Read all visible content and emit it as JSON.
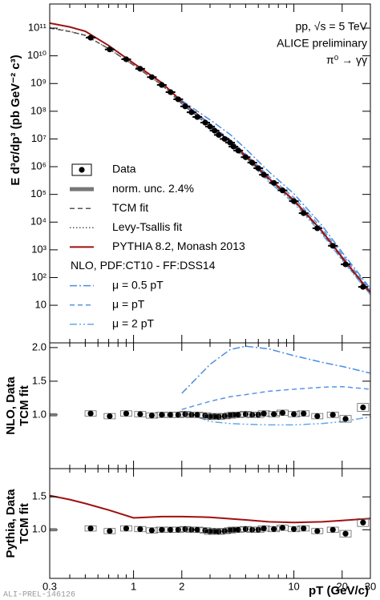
{
  "x_axis": {
    "label": "pT (GeV/c)",
    "xlim": [
      0.3,
      30
    ],
    "xticks": [
      0.3,
      1,
      2,
      10,
      20,
      30
    ],
    "xminor": [
      0.4,
      0.5,
      0.6,
      0.7,
      0.8,
      0.9,
      3,
      4,
      5,
      6,
      7,
      8,
      9
    ],
    "log": true
  },
  "watermark": "ALI-PREL-146126",
  "chart_data": [
    {
      "type": "line",
      "ylabel": "E d³σ/dp³ (pb GeV⁻² c³)",
      "log_y": true,
      "annotations": [
        "pp, √s = 5 TeV",
        "ALICE preliminary",
        "π⁰ → γγ"
      ],
      "ylim": [
        0.44,
        740000000000.0
      ],
      "yticks": [
        10,
        {
          "value": 100,
          "label": "10²"
        },
        {
          "value": 1000,
          "label": "10³"
        },
        {
          "value": 10000,
          "label": "10⁴"
        },
        {
          "value": 100000,
          "label": "10⁵"
        },
        {
          "value": 1000000,
          "label": "10⁶"
        },
        {
          "value": 10000000,
          "label": "10⁷"
        },
        {
          "value": 100000000,
          "label": "10⁸"
        },
        {
          "value": 1000000000,
          "label": "10⁹"
        },
        {
          "value": 10000000000,
          "label": "10¹⁰"
        },
        {
          "value": 100000000000,
          "label": "10¹¹"
        }
      ],
      "norm_unc": {
        "name": "norm. unc. 2.4%",
        "value": 2.4,
        "color": "#777777"
      },
      "legend_header": "NLO, PDF:CT10 - FF:DSS14",
      "series": [
        {
          "name": "Data",
          "color": "#000000",
          "style": "markers",
          "x": [
            0.54,
            0.71,
            0.9,
            1.1,
            1.3,
            1.5,
            1.7,
            1.9,
            2.1,
            2.3,
            2.5,
            2.8,
            3.0,
            3.2,
            3.4,
            3.7,
            4.0,
            4.2,
            4.5,
            5.0,
            5.5,
            6,
            6.5,
            7.5,
            8.5,
            10,
            11.5,
            14,
            17.5,
            21,
            27
          ],
          "values": [
            45000000000.0,
            17000000000.0,
            7500000000.0,
            3400000000.0,
            1700000000.0,
            890000000.0,
            490000000.0,
            270000000.0,
            150000000.0,
            92000000.0,
            62000000.0,
            39000000.0,
            28000000.0,
            20000000.0,
            14000000.0,
            10000000.0,
            7400000.0,
            5300000.0,
            3800000.0,
            2200000.0,
            1400000.0,
            880000.0,
            510000.0,
            260000.0,
            140000.0,
            57000.0,
            21000.0,
            6000.0,
            1400.0,
            300,
            46
          ]
        },
        {
          "name": "TCM fit",
          "color": "#555555",
          "style": "dashed",
          "x": [
            0.3,
            0.4,
            0.5,
            0.7,
            1,
            1.5,
            2,
            3,
            5,
            7,
            10,
            15,
            20,
            30
          ],
          "values": [
            100000000000.0,
            75000000000.0,
            55000000000.0,
            18000000000.0,
            4600000000.0,
            890000000.0,
            185000000.0,
            28000000.0,
            2200000.0,
            330000.0,
            56000.0,
            4200.0,
            470,
            25
          ]
        },
        {
          "name": "Levy-Tsallis fit",
          "color": "#555555",
          "style": "dotted",
          "x": [
            0.3,
            0.4,
            0.5,
            0.7,
            1,
            1.5,
            2,
            3,
            5,
            7,
            10,
            15,
            20,
            30
          ],
          "values": [
            105000000000.0,
            76000000000.0,
            55000000000.0,
            18000000000.0,
            4600000000.0,
            890000000.0,
            185000000.0,
            28000000.0,
            2200000.0,
            330000.0,
            57000.0,
            4300.0,
            480,
            26
          ]
        },
        {
          "name": "PYTHIA 8.2, Monash 2013",
          "color": "#a01010",
          "style": "solid",
          "x": [
            0.3,
            0.4,
            0.5,
            0.7,
            1,
            1.5,
            2,
            3,
            5,
            7,
            10,
            15,
            20,
            30
          ],
          "values": [
            152000000000.0,
            110000000000.0,
            77000000000.0,
            23400000000.0,
            5400000000.0,
            1070000000.0,
            222000000.0,
            33300000.0,
            2530000.0,
            370000.0,
            62000.0,
            4700.0,
            536,
            29
          ]
        },
        {
          "name": "μ = 0.5 pT",
          "color": "#4a8ee0",
          "style": "dash-dot",
          "x": [
            2,
            3,
            4,
            5,
            7,
            10,
            15,
            20,
            30
          ],
          "values": [
            244000000.0,
            49000000.0,
            14600000.0,
            4440000.0,
            650000.0,
            105000.0,
            7500.0,
            810,
            40
          ]
        },
        {
          "name": "μ = pT",
          "color": "#5b93e6",
          "style": "dashed",
          "x": [
            2,
            3,
            4,
            5,
            7,
            10,
            15,
            20,
            30
          ],
          "values": [
            200000000.0,
            33600000.0,
            9400000.0,
            2860000.0,
            446000.0,
            77000.0,
            5900.0,
            670,
            35
          ]
        },
        {
          "name": "μ = 2 pT",
          "color": "#62a8ea",
          "style": "dash-dot-dot",
          "x": [
            2,
            3,
            4,
            5,
            7,
            10,
            15,
            20,
            30
          ],
          "values": [
            194000000.0,
            25200000.0,
            6400000.0,
            1890000.0,
            280000.0,
            48000.0,
            3650.0,
            420,
            24
          ]
        }
      ]
    },
    {
      "type": "line",
      "ylabel": [
        "NLO, Data",
        "TCM fit"
      ],
      "log_y": false,
      "ylim": [
        0.2,
        2.07
      ],
      "yticks": [
        {
          "value": 1,
          "label": "1.0"
        },
        {
          "value": 1.5,
          "label": "1.5"
        },
        {
          "value": 2,
          "label": "2.0"
        }
      ],
      "series": [
        {
          "color": "#4a8ee0",
          "style": "dash-dot",
          "x": [
            2,
            3,
            4,
            5,
            7,
            10,
            15,
            20,
            30
          ],
          "values": [
            1.32,
            1.75,
            1.97,
            2.02,
            1.98,
            1.88,
            1.78,
            1.72,
            1.62
          ]
        },
        {
          "color": "#5b93e6",
          "style": "dashed",
          "x": [
            2,
            3,
            4,
            5,
            7,
            10,
            15,
            20,
            30
          ],
          "values": [
            1.08,
            1.2,
            1.27,
            1.3,
            1.35,
            1.38,
            1.41,
            1.42,
            1.38
          ]
        },
        {
          "color": "#62a8ea",
          "style": "dash-dot-dot",
          "x": [
            2,
            3,
            4,
            5,
            7,
            10,
            15,
            20,
            30
          ],
          "values": [
            1.05,
            0.9,
            0.87,
            0.86,
            0.85,
            0.85,
            0.87,
            0.9,
            0.97
          ]
        },
        {
          "color": "#000000",
          "style": "markers",
          "x": [
            0.54,
            0.71,
            0.9,
            1.1,
            1.3,
            1.5,
            1.7,
            1.9,
            2.1,
            2.3,
            2.5,
            2.8,
            3.0,
            3.2,
            3.4,
            3.7,
            4.0,
            4.2,
            4.5,
            5.0,
            5.5,
            6,
            6.5,
            7.5,
            8.5,
            10,
            11.5,
            14,
            17.5,
            21,
            27
          ],
          "values": [
            1.02,
            0.98,
            1.02,
            1.01,
            0.99,
            1.0,
            1.0,
            1.0,
            1.01,
            1.0,
            1.0,
            0.99,
            0.97,
            0.98,
            0.97,
            0.98,
            0.99,
            1.0,
            1.0,
            1.01,
            1.0,
            1.0,
            1.02,
            1.01,
            1.03,
            1.01,
            1.02,
            0.98,
            1.0,
            0.94,
            1.11
          ],
          "errors": [
            0.04,
            0.04,
            0.04,
            0.04,
            0.04,
            0.04,
            0.04,
            0.04,
            0.04,
            0.04,
            0.04,
            0.04,
            0.04,
            0.04,
            0.04,
            0.04,
            0.04,
            0.04,
            0.04,
            0.04,
            0.04,
            0.04,
            0.04,
            0.04,
            0.04,
            0.04,
            0.04,
            0.04,
            0.04,
            0.05,
            0.06
          ]
        }
      ]
    },
    {
      "type": "line",
      "ylabel": [
        "Pythia, Data",
        "TCM fit"
      ],
      "log_y": false,
      "ylim": [
        0.26,
        1.93
      ],
      "yticks": [
        {
          "value": 1,
          "label": "1.0"
        },
        {
          "value": 1.5,
          "label": "1.5"
        }
      ],
      "series": [
        {
          "color": "#a01010",
          "style": "solid",
          "x": [
            0.3,
            0.4,
            0.5,
            0.7,
            1,
            1.5,
            2,
            3,
            5,
            7,
            10,
            15,
            20,
            30
          ],
          "values": [
            1.52,
            1.46,
            1.4,
            1.3,
            1.18,
            1.2,
            1.2,
            1.19,
            1.15,
            1.12,
            1.11,
            1.12,
            1.14,
            1.17
          ]
        },
        {
          "color": "#000000",
          "style": "markers",
          "x": [
            0.54,
            0.71,
            0.9,
            1.1,
            1.3,
            1.5,
            1.7,
            1.9,
            2.1,
            2.3,
            2.5,
            2.8,
            3.0,
            3.2,
            3.4,
            3.7,
            4.0,
            4.2,
            4.5,
            5.0,
            5.5,
            6,
            6.5,
            7.5,
            8.5,
            10,
            11.5,
            14,
            17.5,
            21,
            27
          ],
          "values": [
            1.02,
            0.98,
            1.02,
            1.01,
            0.99,
            1.0,
            1.0,
            1.0,
            1.01,
            1.0,
            1.0,
            0.99,
            0.97,
            0.98,
            0.97,
            0.98,
            0.99,
            1.0,
            1.0,
            1.01,
            1.0,
            1.0,
            1.02,
            1.01,
            1.03,
            1.01,
            1.02,
            0.98,
            1.0,
            0.94,
            1.11
          ],
          "errors": [
            0.04,
            0.04,
            0.04,
            0.04,
            0.04,
            0.04,
            0.04,
            0.04,
            0.04,
            0.04,
            0.04,
            0.04,
            0.04,
            0.04,
            0.04,
            0.04,
            0.04,
            0.04,
            0.04,
            0.04,
            0.04,
            0.04,
            0.04,
            0.04,
            0.04,
            0.04,
            0.04,
            0.04,
            0.04,
            0.05,
            0.06
          ]
        }
      ]
    }
  ]
}
